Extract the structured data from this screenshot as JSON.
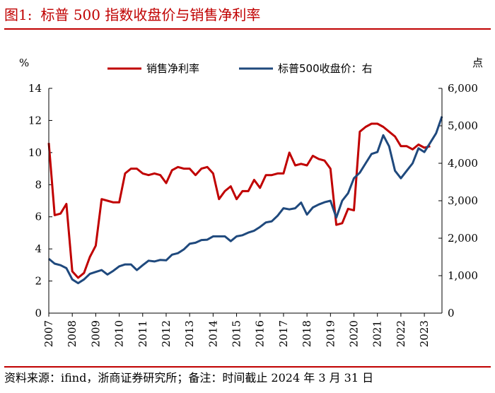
{
  "title": {
    "figure_label": "图1:",
    "text": "标普 500 指数收盘价与销售净利率"
  },
  "source_note": "资料来源：ifind，浙商证券研究所；备注：时间截止 2024 年 3 月 31 日",
  "colors": {
    "accent": "#c00000",
    "margin_line": "#c00000",
    "price_line": "#1f497d"
  },
  "chart_data": {
    "type": "line",
    "title": "标普 500 指数收盘价与销售净利率",
    "left_axis_label": "%",
    "right_axis_label": "点",
    "left_ylim": [
      0,
      14
    ],
    "left_ticks": [
      "0",
      "2",
      "4",
      "6",
      "8",
      "10",
      "12",
      "14"
    ],
    "right_ylim": [
      0,
      6000
    ],
    "right_ticks": [
      "0",
      "1,000",
      "2,000",
      "3,000",
      "4,000",
      "5,000",
      "6,000"
    ],
    "x_range": [
      2007,
      2023.75
    ],
    "x_ticks": [
      "2007",
      "2008",
      "2009",
      "2010",
      "2011",
      "2012",
      "2013",
      "2014",
      "2015",
      "2016",
      "2017",
      "2018",
      "2019",
      "2020",
      "2021",
      "2022",
      "2023"
    ],
    "legend_position": "top",
    "series": [
      {
        "name": "销售净利率",
        "axis": "left",
        "x": [
          2007.0,
          2007.25,
          2007.5,
          2007.75,
          2008.0,
          2008.25,
          2008.5,
          2008.75,
          2009.0,
          2009.25,
          2009.5,
          2009.75,
          2010.0,
          2010.25,
          2010.5,
          2010.75,
          2011.0,
          2011.25,
          2011.5,
          2011.75,
          2012.0,
          2012.25,
          2012.5,
          2012.75,
          2013.0,
          2013.25,
          2013.5,
          2013.75,
          2014.0,
          2014.25,
          2014.5,
          2014.75,
          2015.0,
          2015.25,
          2015.5,
          2015.75,
          2016.0,
          2016.25,
          2016.5,
          2016.75,
          2017.0,
          2017.25,
          2017.5,
          2017.75,
          2018.0,
          2018.25,
          2018.5,
          2018.75,
          2019.0,
          2019.25,
          2019.5,
          2019.75,
          2020.0,
          2020.25,
          2020.5,
          2020.75,
          2021.0,
          2021.25,
          2021.5,
          2021.75,
          2022.0,
          2022.25,
          2022.5,
          2022.75,
          2023.0,
          2023.25
        ],
        "values": [
          10.6,
          6.1,
          6.2,
          6.8,
          2.6,
          2.2,
          2.5,
          3.5,
          4.2,
          7.1,
          7.0,
          6.9,
          6.9,
          8.7,
          9.0,
          9.0,
          8.7,
          8.6,
          8.7,
          8.6,
          8.1,
          8.9,
          9.1,
          9.0,
          9.0,
          8.6,
          9.0,
          9.1,
          8.7,
          7.1,
          7.6,
          7.9,
          7.1,
          7.6,
          7.6,
          8.3,
          7.8,
          8.6,
          8.6,
          8.7,
          8.7,
          10.0,
          9.2,
          9.3,
          9.2,
          9.8,
          9.6,
          9.5,
          9.0,
          5.5,
          5.6,
          6.5,
          6.4,
          11.3,
          11.6,
          11.8,
          11.8,
          11.6,
          11.3,
          11.0,
          10.4,
          10.4,
          10.2,
          10.5,
          10.3,
          10.4
        ]
      },
      {
        "name": "标普500收盘价：右",
        "axis": "right",
        "x": [
          2007.0,
          2007.25,
          2007.5,
          2007.75,
          2008.0,
          2008.25,
          2008.5,
          2008.75,
          2009.0,
          2009.25,
          2009.5,
          2009.75,
          2010.0,
          2010.25,
          2010.5,
          2010.75,
          2011.0,
          2011.25,
          2011.5,
          2011.75,
          2012.0,
          2012.25,
          2012.5,
          2012.75,
          2013.0,
          2013.25,
          2013.5,
          2013.75,
          2014.0,
          2014.25,
          2014.5,
          2014.75,
          2015.0,
          2015.25,
          2015.5,
          2015.75,
          2016.0,
          2016.25,
          2016.5,
          2016.75,
          2017.0,
          2017.25,
          2017.5,
          2017.75,
          2018.0,
          2018.25,
          2018.5,
          2018.75,
          2019.0,
          2019.25,
          2019.5,
          2019.75,
          2020.0,
          2020.25,
          2020.5,
          2020.75,
          2021.0,
          2021.25,
          2021.5,
          2021.75,
          2022.0,
          2022.25,
          2022.5,
          2022.75,
          2023.0,
          2023.25,
          2023.5,
          2023.75
        ],
        "values": [
          1450,
          1320,
          1280,
          1200,
          900,
          800,
          900,
          1050,
          1100,
          1150,
          1030,
          1130,
          1250,
          1300,
          1300,
          1150,
          1280,
          1400,
          1380,
          1420,
          1410,
          1560,
          1600,
          1700,
          1850,
          1880,
          1950,
          1960,
          2050,
          2050,
          2050,
          1920,
          2050,
          2080,
          2150,
          2200,
          2300,
          2420,
          2450,
          2600,
          2800,
          2770,
          2800,
          2950,
          2630,
          2820,
          2900,
          2960,
          3000,
          2550,
          3000,
          3200,
          3600,
          3750,
          4000,
          4250,
          4300,
          4750,
          4450,
          3800,
          3600,
          3800,
          4000,
          4400,
          4300,
          4550,
          4800,
          5250
        ]
      }
    ]
  }
}
